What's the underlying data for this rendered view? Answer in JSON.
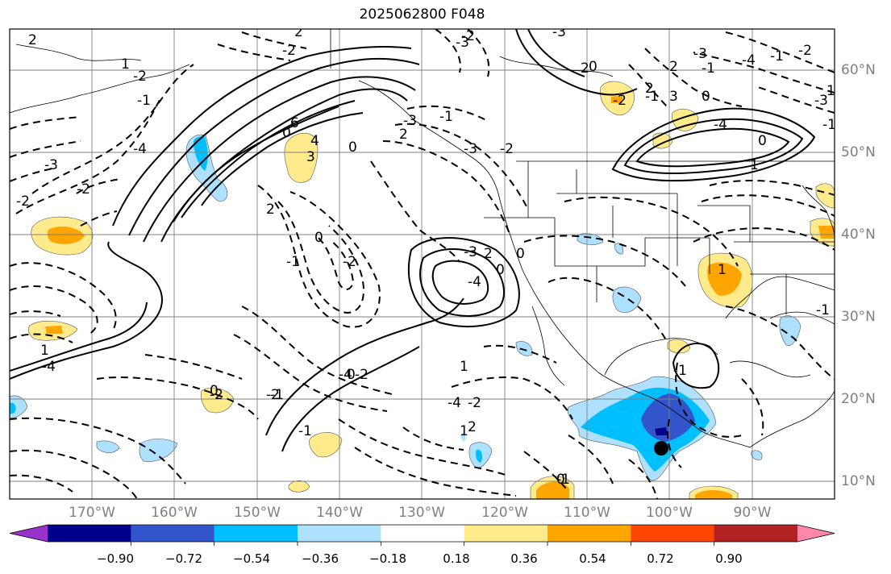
{
  "title": "2025062800 F048",
  "lat_labels": [
    {
      "text": "60°N"
    },
    {
      "text": "50°N"
    },
    {
      "text": "40°N"
    },
    {
      "text": "30°N"
    },
    {
      "text": "20°N"
    },
    {
      "text": "10°N"
    }
  ],
  "lon_labels": [
    {
      "text": "170°W"
    },
    {
      "text": "160°W"
    },
    {
      "text": "150°W"
    },
    {
      "text": "140°W"
    },
    {
      "text": "130°W"
    },
    {
      "text": "120°W"
    },
    {
      "text": "110°W"
    },
    {
      "text": "100°W"
    },
    {
      "text": "90°W"
    }
  ],
  "colorbar": {
    "colors": [
      "#9932cc",
      "#00008b",
      "#3355cc",
      "#00bfff",
      "#aee0ff",
      "#ffffff",
      "#ffeb8c",
      "#ffa500",
      "#ff4500",
      "#b22222",
      "#ff88aa"
    ],
    "ticks": [
      "−0.90",
      "−0.72",
      "−0.54",
      "−0.36",
      "−0.18",
      "0.18",
      "0.36",
      "0.54",
      "0.72",
      "0.90"
    ]
  },
  "contour_labels": [
    "2",
    "2",
    "-2",
    "-3",
    "-2",
    "-3",
    "0",
    "2",
    "-3",
    "-4",
    "-1",
    "-2",
    "1",
    "1",
    "-2",
    "-1",
    "-4",
    "-3",
    "-2",
    "-2",
    "1",
    "-4",
    "6",
    "4",
    "3",
    "0",
    "2",
    "2",
    "-1",
    "0",
    "-2",
    "-3",
    "-4",
    "-3",
    "-2",
    "-1",
    "-3",
    "-4",
    "-2",
    "-2",
    "-2",
    "-1",
    "0",
    "2",
    "3",
    "0",
    "-4",
    "0",
    "1",
    "1",
    "-1",
    "1",
    "-2",
    "-1",
    "2",
    "0",
    "-1",
    "-1",
    "-3",
    "-1",
    "0",
    "0",
    "1",
    "2",
    "0",
    "-1",
    "0",
    "-4",
    "0",
    "2",
    "-1",
    "-2"
  ],
  "colors": {
    "frame": "#000000",
    "grid": "#808080",
    "contour": "#000000",
    "tick_label": "#808080"
  }
}
